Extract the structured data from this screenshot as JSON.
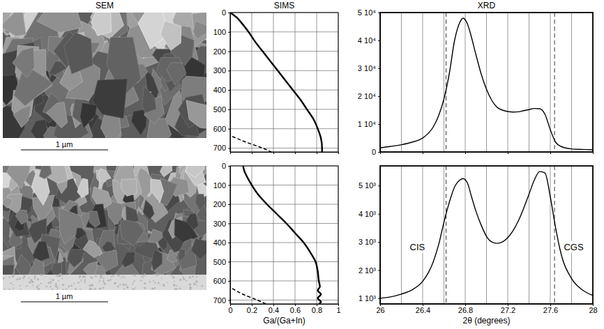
{
  "sem": {
    "title": "SEM",
    "images": [
      {
        "scale_bar": "1 µm"
      },
      {
        "scale_bar": "1 µm"
      }
    ]
  },
  "chart_data": [
    {
      "type": "line",
      "title": "SIMS",
      "xlim": [
        0,
        1
      ],
      "xticks": [
        0,
        0.2,
        0.4,
        0.6,
        0.8,
        1
      ],
      "ylim": [
        720,
        0
      ],
      "yticks": [
        0,
        100,
        200,
        300,
        400,
        500,
        600,
        700
      ],
      "grid": true,
      "tick_labels": "y",
      "series": [
        {
          "color": "#000000",
          "line_style": "solid",
          "x": [
            0.0,
            0.06,
            0.1,
            0.17,
            0.23,
            0.3,
            0.37,
            0.44,
            0.51,
            0.58,
            0.65,
            0.71,
            0.77,
            0.81,
            0.84,
            0.85,
            0.85
          ],
          "y": [
            0,
            25,
            50,
            100,
            150,
            200,
            250,
            300,
            350,
            400,
            450,
            500,
            550,
            600,
            650,
            700,
            720
          ]
        },
        {
          "color": "#000000",
          "line_style": "dashed",
          "x": [
            0.02,
            0.15,
            0.3,
            0.38
          ],
          "y": [
            640,
            670,
            700,
            720
          ]
        }
      ]
    },
    {
      "type": "line",
      "xlabel": "Ga/(Ga+In)",
      "xlim": [
        0,
        1
      ],
      "xticks": [
        0,
        0.2,
        0.4,
        0.6,
        0.8,
        1
      ],
      "ylim": [
        720,
        0
      ],
      "yticks": [
        0,
        100,
        200,
        300,
        400,
        500,
        600,
        700
      ],
      "grid": true,
      "series": [
        {
          "color": "#000000",
          "line_style": "solid",
          "x": [
            0.12,
            0.13,
            0.15,
            0.2,
            0.26,
            0.34,
            0.43,
            0.52,
            0.6,
            0.68,
            0.74,
            0.79,
            0.81,
            0.82,
            0.83,
            0.81,
            0.84,
            0.81,
            0.84,
            0.82
          ],
          "y": [
            0,
            25,
            50,
            100,
            150,
            200,
            250,
            300,
            350,
            400,
            450,
            500,
            550,
            600,
            630,
            650,
            670,
            690,
            710,
            720
          ]
        },
        {
          "color": "#000000",
          "line_style": "dashed",
          "x": [
            0.02,
            0.12,
            0.25,
            0.33
          ],
          "y": [
            640,
            670,
            700,
            720
          ]
        }
      ]
    },
    {
      "type": "line",
      "title": "XRD",
      "x": [
        26.0,
        26.1,
        26.2,
        26.3,
        26.4,
        26.5,
        26.55,
        26.6,
        26.65,
        26.7,
        26.75,
        26.78,
        26.82,
        26.86,
        26.9,
        26.95,
        27.0,
        27.05,
        27.1,
        27.15,
        27.2,
        27.25,
        27.3,
        27.35,
        27.4,
        27.45,
        27.5,
        27.55,
        27.6,
        27.65,
        27.7,
        27.8,
        27.9,
        28.0
      ],
      "xlim": [
        26,
        28
      ],
      "xticks": [
        26,
        26.4,
        26.8,
        27.2,
        27.6,
        28
      ],
      "minor_xticks": [
        26.2,
        26.6,
        27.0,
        27.4,
        27.8
      ],
      "ylim": [
        0,
        50000
      ],
      "yticks": [
        0,
        {
          "value": 10000,
          "label": "1 10⁴"
        },
        {
          "value": 20000,
          "label": "2 10⁴"
        },
        {
          "value": 30000,
          "label": "3 10⁴"
        },
        {
          "value": 40000,
          "label": "4 10⁴"
        },
        {
          "value": 50000,
          "label": "5 10⁴"
        }
      ],
      "grid": "x",
      "tick_labels": "y",
      "reference_lines": [
        26.62,
        27.64
      ],
      "series": [
        {
          "color": "#000000",
          "line_style": "solid",
          "values": [
            1500,
            2000,
            2600,
            3500,
            5000,
            9000,
            13000,
            19000,
            28000,
            40000,
            46500,
            48000,
            46000,
            41000,
            35000,
            28000,
            22500,
            18500,
            16000,
            15000,
            14500,
            14300,
            14400,
            14800,
            15200,
            15600,
            15500,
            13500,
            8000,
            3500,
            2000,
            1100,
            900,
            800
          ]
        }
      ]
    },
    {
      "type": "line",
      "xlabel": "2θ (degrees)",
      "x": [
        26.0,
        26.1,
        26.2,
        26.3,
        26.4,
        26.5,
        26.55,
        26.6,
        26.65,
        26.7,
        26.75,
        26.78,
        26.82,
        26.86,
        26.9,
        26.95,
        27.0,
        27.05,
        27.1,
        27.15,
        27.2,
        27.25,
        27.3,
        27.35,
        27.4,
        27.45,
        27.5,
        27.55,
        27.6,
        27.65,
        27.7,
        27.8,
        27.9,
        28.0
      ],
      "xlim": [
        26,
        28
      ],
      "xticks": [
        26,
        26.4,
        26.8,
        27.2,
        27.6,
        28
      ],
      "minor_xticks": [
        26.2,
        26.6,
        27.0,
        27.4,
        27.8
      ],
      "ylim": [
        800,
        5700
      ],
      "yticks": [
        {
          "value": 1000,
          "label": "1 10³"
        },
        {
          "value": 2000,
          "label": "2 10³"
        },
        {
          "value": 3000,
          "label": "3 10³"
        },
        {
          "value": 4000,
          "label": "4 10³"
        },
        {
          "value": 5000,
          "label": "5 10³"
        }
      ],
      "grid": "x",
      "reference_lines": [
        26.62,
        27.64
      ],
      "annotations": [
        {
          "text": "CIS",
          "x": 26.35,
          "y": 2800
        },
        {
          "text": "CGS",
          "x": 27.82,
          "y": 2800
        }
      ],
      "series": [
        {
          "color": "#000000",
          "line_style": "solid",
          "values": [
            1000,
            1050,
            1150,
            1300,
            1600,
            2300,
            2900,
            3700,
            4400,
            4950,
            5200,
            5250,
            5100,
            4600,
            4100,
            3600,
            3200,
            3000,
            2950,
            3000,
            3150,
            3400,
            3750,
            4200,
            4700,
            5200,
            5500,
            5450,
            4600,
            3500,
            2600,
            1700,
            1300,
            1100
          ]
        }
      ]
    }
  ]
}
